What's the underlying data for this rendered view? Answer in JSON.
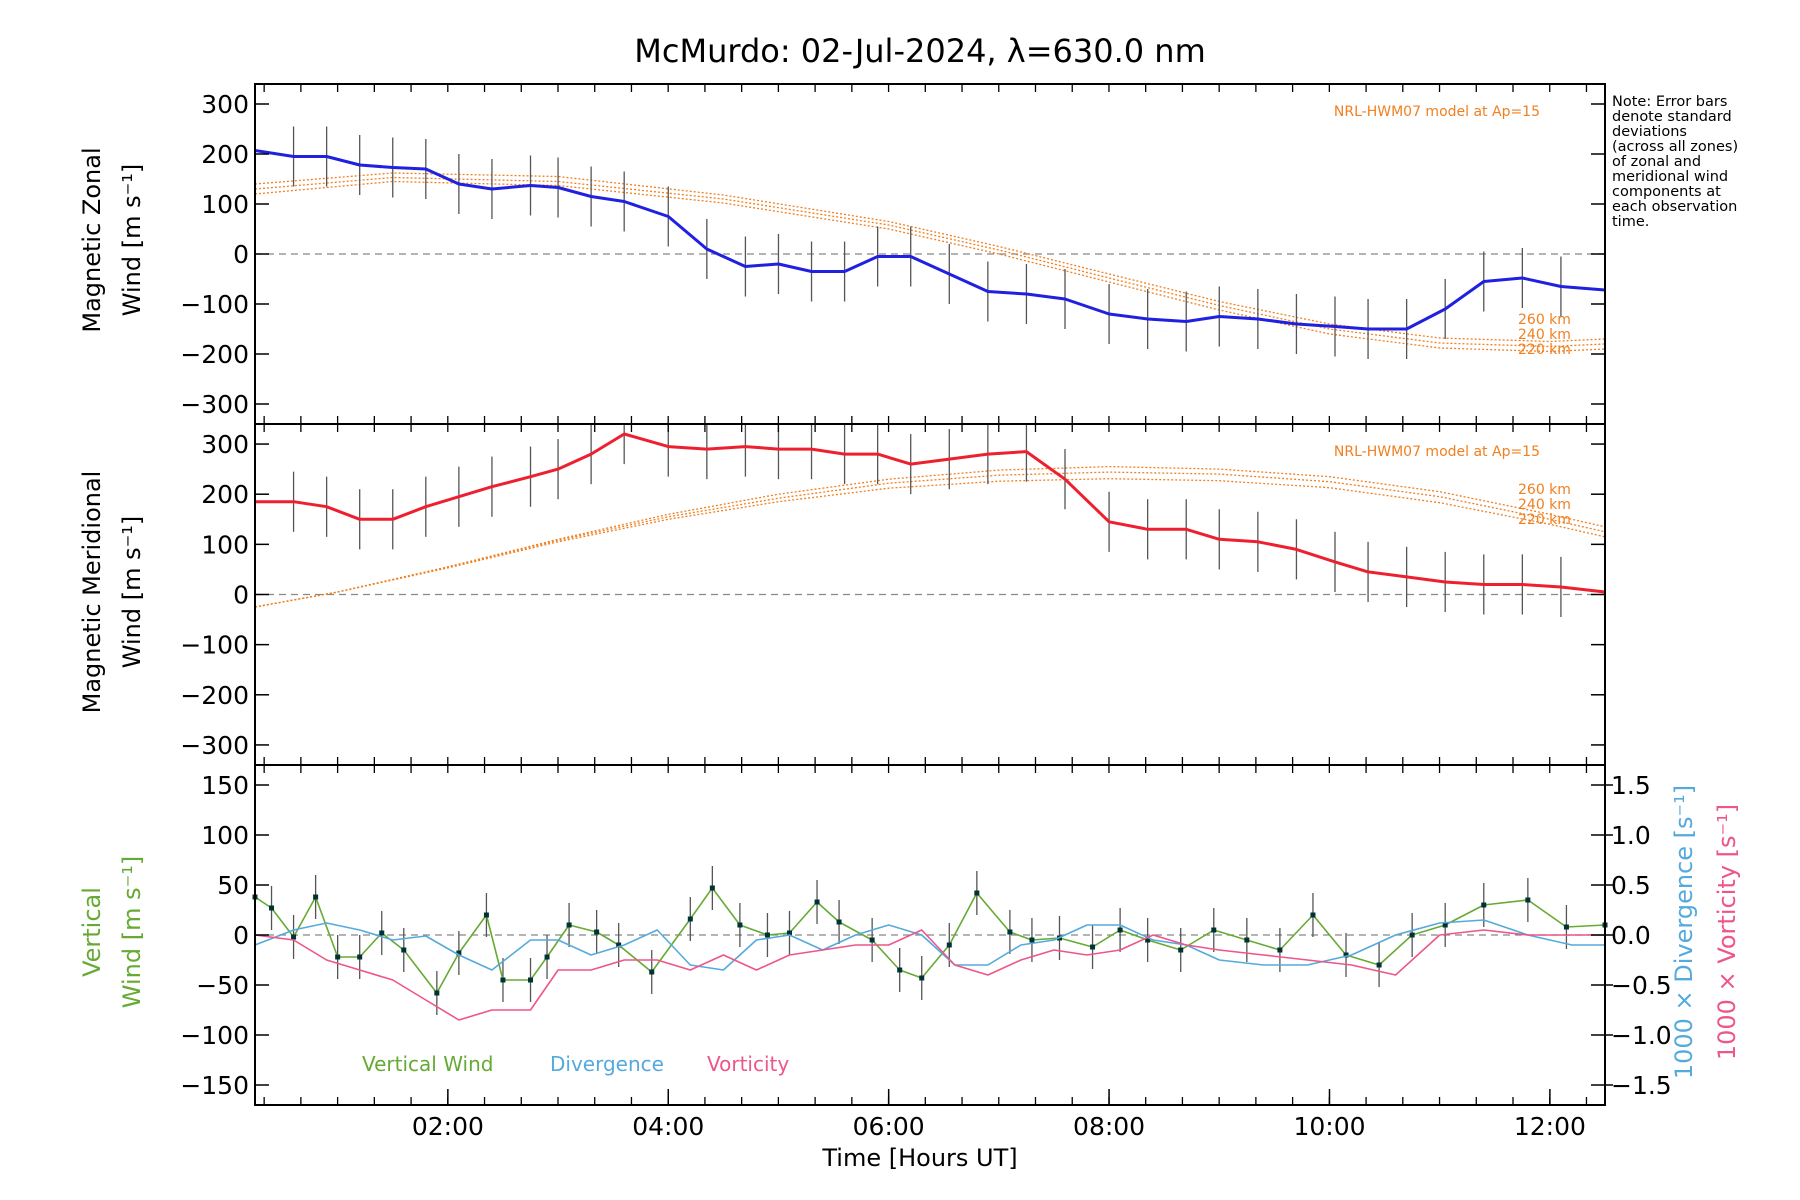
{
  "title": "McMurdo: 02-Jul-2024, λ=630.0 nm",
  "note": [
    "Note: Error bars",
    "denote standard",
    "deviations",
    "(across all zones)",
    "of zonal and",
    "meridional wind",
    "components at",
    "each observation",
    "time."
  ],
  "colors": {
    "zonal": "#2020e0",
    "meridional": "#ee2030",
    "model": "#f08020",
    "vertical": "#66aa33",
    "divergence": "#55aadd",
    "vorticity": "#ee5588",
    "errorbar": "#555555",
    "zero_line": "#888888"
  },
  "chart_data": [
    {
      "type": "line",
      "panel": "zonal",
      "ylabel_1": "Magnetic Zonal",
      "ylabel_2": "Wind [m s⁻¹]",
      "ylim": [
        -340,
        340
      ],
      "xlim": [
        0.25,
        12.5
      ],
      "yticks": [
        300,
        200,
        100,
        0,
        -100,
        -200,
        -300
      ],
      "ytick_labels": [
        "300",
        "200",
        "100",
        "0",
        "−100",
        "−200",
        "−300"
      ],
      "grid": false,
      "model_label": "NRL-HWM07 model at Ap=15",
      "model_altitudes": [
        "260 km",
        "240 km",
        "220 km"
      ],
      "model_curves": [
        {
          "name": "260 km",
          "x": [
            0.25,
            1.5,
            3.0,
            4.5,
            6.0,
            7.0,
            8.0,
            9.0,
            10.0,
            11.0,
            12.0,
            12.5
          ],
          "y": [
            140,
            162,
            155,
            118,
            65,
            15,
            -40,
            -95,
            -140,
            -168,
            -175,
            -170
          ]
        },
        {
          "name": "240 km",
          "x": [
            0.25,
            1.5,
            3.0,
            4.5,
            6.0,
            7.0,
            8.0,
            9.0,
            10.0,
            11.0,
            12.0,
            12.5
          ],
          "y": [
            130,
            153,
            145,
            110,
            58,
            8,
            -48,
            -103,
            -150,
            -178,
            -185,
            -180
          ]
        },
        {
          "name": "220 km",
          "x": [
            0.25,
            1.5,
            3.0,
            4.5,
            6.0,
            7.0,
            8.0,
            9.0,
            10.0,
            11.0,
            12.0,
            12.5
          ],
          "y": [
            120,
            145,
            137,
            102,
            50,
            0,
            -56,
            -112,
            -160,
            -188,
            -195,
            -190
          ]
        }
      ],
      "series": [
        {
          "name": "zonal",
          "x": [
            0.25,
            0.6,
            0.9,
            1.2,
            1.5,
            1.8,
            2.1,
            2.4,
            2.75,
            3.0,
            3.3,
            3.6,
            4.0,
            4.35,
            4.7,
            5.0,
            5.3,
            5.6,
            5.9,
            6.2,
            6.55,
            6.9,
            7.25,
            7.6,
            8.0,
            8.35,
            8.7,
            9.0,
            9.35,
            9.7,
            10.05,
            10.35,
            10.7,
            11.05,
            11.4,
            11.75,
            12.1,
            12.5
          ],
          "y": [
            207,
            195,
            195,
            178,
            173,
            170,
            140,
            130,
            137,
            133,
            115,
            105,
            75,
            10,
            -25,
            -20,
            -35,
            -35,
            -5,
            -5,
            -40,
            -75,
            -80,
            -90,
            -120,
            -130,
            -135,
            -125,
            -130,
            -140,
            -145,
            -150,
            -150,
            -110,
            -55,
            -48,
            -65,
            -72
          ]
        }
      ]
    },
    {
      "type": "line",
      "panel": "meridional",
      "ylabel_1": "Magnetic Meridional",
      "ylabel_2": "Wind [m s⁻¹]",
      "ylim": [
        -340,
        340
      ],
      "xlim": [
        0.25,
        12.5
      ],
      "yticks": [
        300,
        200,
        100,
        0,
        -100,
        -200,
        -300
      ],
      "ytick_labels": [
        "300",
        "200",
        "100",
        "0",
        "−100",
        "−200",
        "−300"
      ],
      "grid": false,
      "model_label": "NRL-HWM07 model at Ap=15",
      "model_altitudes": [
        "260 km",
        "240 km",
        "220 km"
      ],
      "model_curves": [
        {
          "name": "260 km",
          "x": [
            0.25,
            1.0,
            2.0,
            3.0,
            4.0,
            5.0,
            6.0,
            7.0,
            8.0,
            9.0,
            10.0,
            11.0,
            12.0,
            12.5
          ],
          "y": [
            -25,
            5,
            55,
            110,
            160,
            200,
            230,
            248,
            255,
            250,
            235,
            205,
            160,
            135
          ]
        },
        {
          "name": "240 km",
          "x": [
            0.25,
            1.0,
            2.0,
            3.0,
            4.0,
            5.0,
            6.0,
            7.0,
            8.0,
            9.0,
            10.0,
            11.0,
            12.0,
            12.5
          ],
          "y": [
            -25,
            5,
            55,
            108,
            155,
            192,
            222,
            238,
            244,
            240,
            225,
            195,
            150,
            125
          ]
        },
        {
          "name": "220 km",
          "x": [
            0.25,
            1.0,
            2.0,
            3.0,
            4.0,
            5.0,
            6.0,
            7.0,
            8.0,
            9.0,
            10.0,
            11.0,
            12.0,
            12.5
          ],
          "y": [
            -25,
            5,
            53,
            105,
            150,
            185,
            212,
            226,
            231,
            227,
            213,
            183,
            140,
            115
          ]
        }
      ],
      "series": [
        {
          "name": "meridional",
          "x": [
            0.25,
            0.6,
            0.9,
            1.2,
            1.5,
            1.8,
            2.1,
            2.4,
            2.75,
            3.0,
            3.3,
            3.6,
            4.0,
            4.35,
            4.7,
            5.0,
            5.3,
            5.6,
            5.9,
            6.2,
            6.55,
            6.9,
            7.25,
            7.6,
            8.0,
            8.35,
            8.7,
            9.0,
            9.35,
            9.7,
            10.05,
            10.35,
            10.7,
            11.05,
            11.4,
            11.75,
            12.1,
            12.5
          ],
          "y": [
            185,
            185,
            175,
            150,
            150,
            175,
            195,
            215,
            235,
            250,
            280,
            320,
            295,
            290,
            295,
            290,
            290,
            280,
            280,
            260,
            270,
            280,
            285,
            230,
            145,
            130,
            130,
            110,
            105,
            90,
            65,
            45,
            35,
            25,
            20,
            20,
            15,
            5
          ]
        }
      ]
    },
    {
      "type": "line",
      "panel": "vertical",
      "ylabel_1": "Vertical",
      "ylabel_2": "Wind [m s⁻¹]",
      "ylabel_right_1": "1000 × Divergence [s⁻¹]",
      "ylabel_right_2": "1000 × Vorticity [s⁻¹]",
      "ylim": [
        -170,
        170
      ],
      "ylim_right": [
        -1.7,
        1.7
      ],
      "xlim": [
        0.25,
        12.5
      ],
      "xticks": [
        2,
        4,
        6,
        8,
        10,
        12
      ],
      "xtick_labels": [
        "02:00",
        "04:00",
        "06:00",
        "08:00",
        "10:00",
        "12:00"
      ],
      "xlabel": "Time [Hours UT]",
      "yticks": [
        150,
        100,
        50,
        0,
        -50,
        -100,
        -150
      ],
      "ytick_labels": [
        "150",
        "100",
        "50",
        "0",
        "−50",
        "−100",
        "−150"
      ],
      "yticks_right": [
        1.5,
        1.0,
        0.5,
        0.0,
        -0.5,
        -1.0,
        -1.5
      ],
      "ytick_labels_right": [
        "1.5",
        "1.0",
        "0.5",
        "0.0",
        "−0.5",
        "−1.0",
        "−1.5"
      ],
      "grid": false,
      "legend": [
        "Vertical Wind",
        "Divergence",
        "Vorticity"
      ],
      "legend_position": "bottom-left",
      "series": [
        {
          "name": "Vertical Wind",
          "axis": "left",
          "x": [
            0.25,
            0.4,
            0.6,
            0.8,
            1.0,
            1.2,
            1.4,
            1.6,
            1.9,
            2.1,
            2.35,
            2.5,
            2.75,
            2.9,
            3.1,
            3.35,
            3.55,
            3.85,
            4.2,
            4.4,
            4.65,
            4.9,
            5.1,
            5.35,
            5.55,
            5.85,
            6.1,
            6.3,
            6.55,
            6.8,
            7.1,
            7.3,
            7.55,
            7.85,
            8.1,
            8.35,
            8.65,
            8.95,
            9.25,
            9.55,
            9.85,
            10.15,
            10.45,
            10.75,
            11.05,
            11.4,
            11.8,
            12.15,
            12.5
          ],
          "y": [
            38,
            27,
            -2,
            38,
            -22,
            -22,
            2,
            -15,
            -58,
            -18,
            20,
            -45,
            -45,
            -22,
            10,
            3,
            -10,
            -37,
            16,
            47,
            10,
            0,
            2,
            33,
            13,
            -5,
            -35,
            -43,
            -10,
            42,
            3,
            -5,
            -3,
            -12,
            5,
            -5,
            -15,
            5,
            -5,
            -15,
            20,
            -20,
            -30,
            0,
            10,
            30,
            35,
            8,
            10
          ]
        },
        {
          "name": "Divergence",
          "axis": "right",
          "x": [
            0.25,
            0.6,
            0.9,
            1.2,
            1.5,
            1.8,
            2.1,
            2.4,
            2.75,
            3.0,
            3.3,
            3.6,
            3.9,
            4.2,
            4.5,
            4.8,
            5.1,
            5.4,
            5.7,
            6.0,
            6.3,
            6.6,
            6.9,
            7.2,
            7.5,
            7.8,
            8.1,
            8.4,
            8.7,
            9.0,
            9.4,
            9.8,
            10.2,
            10.6,
            11.0,
            11.4,
            11.8,
            12.2,
            12.5
          ],
          "y": [
            -0.1,
            0.05,
            0.12,
            0.05,
            -0.05,
            -0.01,
            -0.2,
            -0.35,
            -0.05,
            -0.05,
            -0.2,
            -0.1,
            0.05,
            -0.3,
            -0.35,
            -0.05,
            0.0,
            -0.15,
            0.0,
            0.1,
            0.0,
            -0.3,
            -0.3,
            -0.1,
            -0.05,
            0.1,
            0.1,
            -0.05,
            -0.1,
            -0.25,
            -0.3,
            -0.3,
            -0.2,
            0.0,
            0.12,
            0.15,
            0.0,
            -0.1,
            -0.1
          ]
        },
        {
          "name": "Vorticity",
          "axis": "right",
          "x": [
            0.25,
            0.6,
            0.9,
            1.2,
            1.5,
            1.8,
            2.1,
            2.4,
            2.75,
            3.0,
            3.3,
            3.6,
            3.9,
            4.2,
            4.5,
            4.8,
            5.1,
            5.4,
            5.7,
            6.0,
            6.3,
            6.6,
            6.9,
            7.2,
            7.5,
            7.8,
            8.1,
            8.4,
            8.7,
            9.0,
            9.4,
            9.8,
            10.2,
            10.6,
            11.0,
            11.4,
            11.8,
            12.2,
            12.5
          ],
          "y": [
            0.0,
            -0.05,
            -0.25,
            -0.35,
            -0.45,
            -0.65,
            -0.85,
            -0.75,
            -0.75,
            -0.35,
            -0.35,
            -0.25,
            -0.25,
            -0.35,
            -0.2,
            -0.35,
            -0.2,
            -0.15,
            -0.1,
            -0.1,
            0.05,
            -0.3,
            -0.4,
            -0.25,
            -0.15,
            -0.2,
            -0.15,
            0.0,
            -0.1,
            -0.15,
            -0.2,
            -0.25,
            -0.3,
            -0.4,
            0.0,
            0.05,
            0.0,
            0.0,
            0.0
          ]
        }
      ]
    }
  ]
}
